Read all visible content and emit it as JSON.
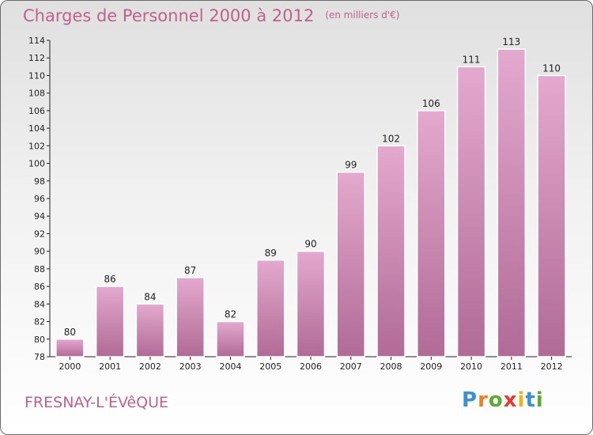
{
  "header": {
    "title": "Charges de Personnel 2000 à 2012",
    "subtitle": "(en milliers d'€)"
  },
  "footer": {
    "town": "FRESNAY-L'ÉVêQUE",
    "brand_letters": [
      "P",
      "r",
      "o",
      "x",
      "i",
      "t",
      "i"
    ]
  },
  "colors": {
    "bar_top": "#e4a9ce",
    "bar_bottom": "#b06b96",
    "title": "#c0608e"
  },
  "chart_data": {
    "type": "bar",
    "title": "Charges de Personnel 2000 à 2012",
    "subtitle": "(en milliers d'€)",
    "categories": [
      "2000",
      "2001",
      "2002",
      "2003",
      "2004",
      "2005",
      "2006",
      "2007",
      "2008",
      "2009",
      "2010",
      "2011",
      "2012"
    ],
    "values": [
      80,
      86,
      84,
      87,
      82,
      89,
      90,
      99,
      102,
      106,
      111,
      113,
      110
    ],
    "ylim": [
      78,
      114
    ],
    "yticks": [
      78,
      80,
      82,
      84,
      86,
      88,
      90,
      92,
      94,
      96,
      98,
      100,
      102,
      104,
      106,
      108,
      110,
      112,
      114
    ],
    "grid": false,
    "legend": "none"
  }
}
